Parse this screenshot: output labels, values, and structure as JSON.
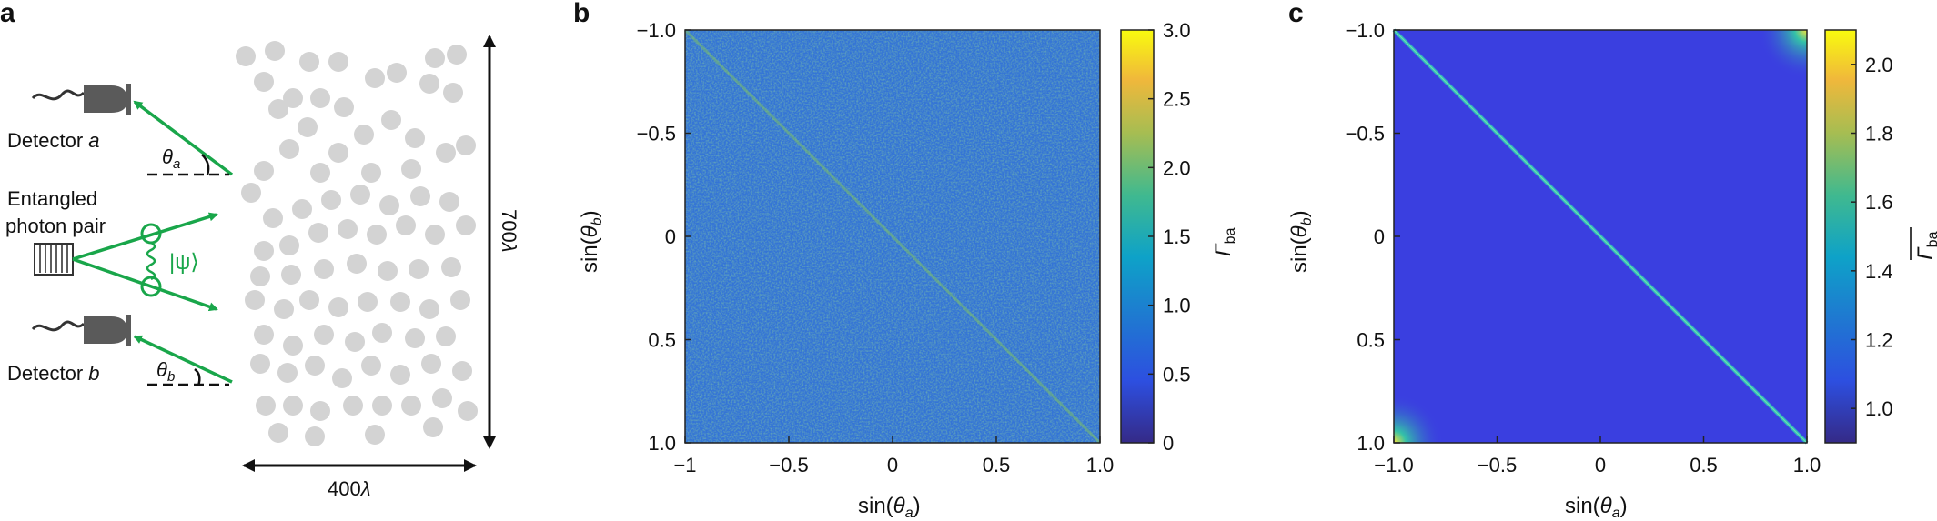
{
  "panels": {
    "a": {
      "letter": "a",
      "detector_a": "Detector a",
      "detector_b": "Detector b",
      "theta_a": "θa",
      "theta_b": "θb",
      "source_label_1": "Entangled",
      "source_label_2": "photon pair",
      "state_label": "|ψ⟩",
      "width_label": "400λ",
      "height_label": "700λ",
      "colors": {
        "beam": "#19a64a",
        "scatterer": "#d3d3d3",
        "detector": "#555555"
      }
    },
    "b": {
      "letter": "b",
      "xlabel": "sin(θa)",
      "ylabel": "sin(θb)",
      "colorbar_label": "Γba",
      "xticks": [
        "−1",
        "−0.5",
        "0",
        "0.5",
        "1.0"
      ],
      "yticks": [
        "−1.0",
        "−0.5",
        "0",
        "0.5",
        "1.0"
      ],
      "cbar_ticks": [
        "3.0",
        "2.5",
        "2.0",
        "1.5",
        "1.0",
        "0.5",
        "0"
      ]
    },
    "c": {
      "letter": "c",
      "xlabel": "sin(θa)",
      "ylabel": "sin(θb)",
      "colorbar_label": "Γba",
      "xticks": [
        "−1.0",
        "−0.5",
        "0",
        "0.5",
        "1.0"
      ],
      "yticks": [
        "−1.0",
        "−0.5",
        "0",
        "0.5",
        "1.0"
      ],
      "cbar_ticks": [
        "2.0",
        "1.8",
        "1.6",
        "1.4",
        "1.2",
        "1.0"
      ]
    }
  },
  "chart_data": [
    {
      "type": "heatmap",
      "title": "",
      "xlabel": "sin(θa)",
      "ylabel": "sin(θb)",
      "colorbar_label": "Γba",
      "xlim": [
        -1,
        1
      ],
      "ylim": [
        -1,
        1
      ],
      "clim": [
        0,
        3.0
      ],
      "description_values": {
        "background_mean": 0.7,
        "diagonal_enhanced": true
      }
    },
    {
      "type": "heatmap",
      "title": "",
      "xlabel": "sin(θa)",
      "ylabel": "sin(θb)",
      "colorbar_label": "Γba (averaged)",
      "xlim": [
        -1,
        1
      ],
      "ylim": [
        -1,
        1
      ],
      "clim": [
        0.9,
        2.1
      ],
      "description_values": {
        "background": 1.0,
        "diagonal_peak": 1.5,
        "corner_peak": 2.1
      }
    }
  ]
}
